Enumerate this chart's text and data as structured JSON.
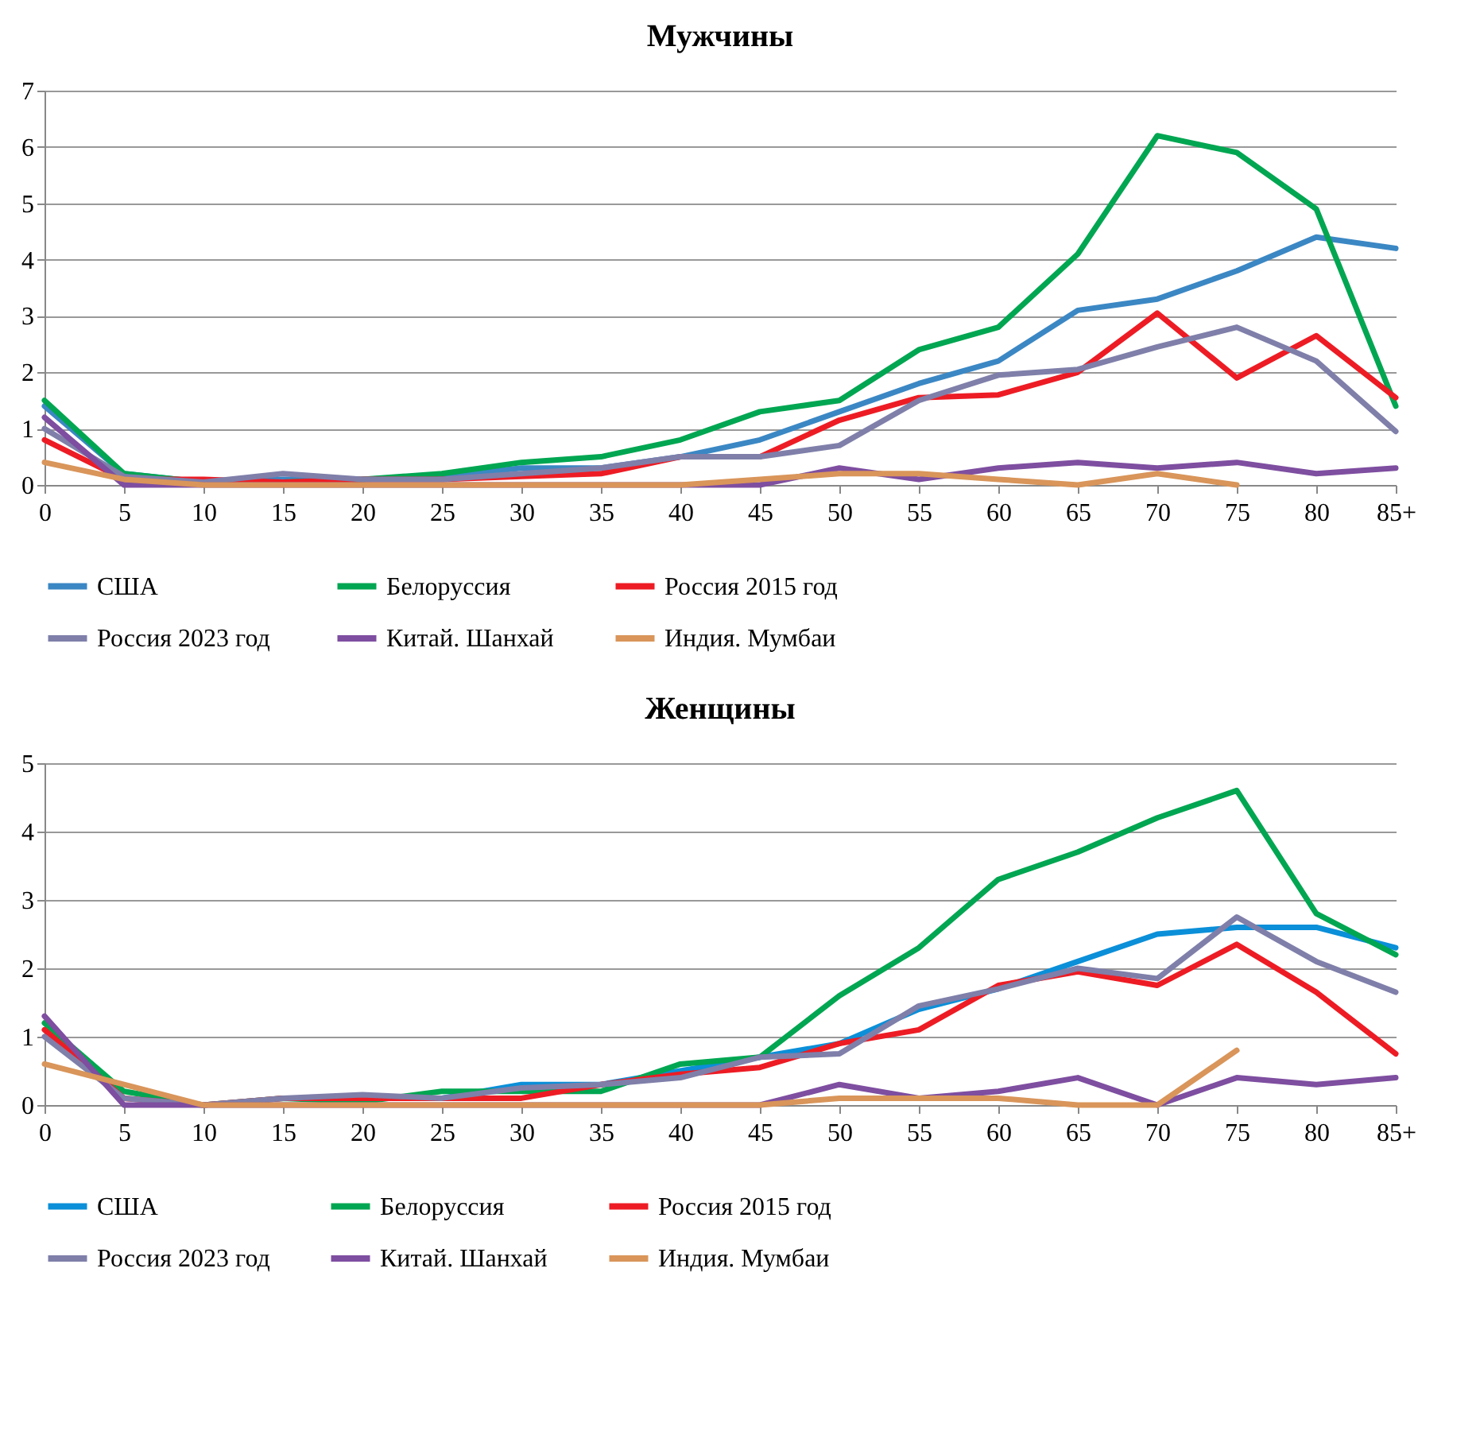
{
  "chart_data": [
    {
      "type": "line",
      "title": "Мужчины",
      "categories": [
        "0",
        "5",
        "10",
        "15",
        "20",
        "25",
        "30",
        "35",
        "40",
        "45",
        "50",
        "55",
        "60",
        "65",
        "70",
        "75",
        "80",
        "85+"
      ],
      "ylim": [
        0,
        7
      ],
      "yticks": [
        0,
        1,
        2,
        3,
        4,
        5,
        6,
        7
      ],
      "grid": "y",
      "legend": "bottom",
      "series": [
        {
          "name": "США",
          "color": "#3b87c4",
          "values": [
            1.4,
            0.2,
            0.05,
            0.1,
            0.1,
            0.15,
            0.3,
            0.3,
            0.5,
            0.8,
            1.3,
            1.8,
            2.2,
            3.1,
            3.3,
            3.8,
            4.4,
            4.2
          ]
        },
        {
          "name": "Белоруссия",
          "color": "#00a651",
          "values": [
            1.5,
            0.2,
            0.05,
            0.05,
            0.1,
            0.2,
            0.4,
            0.5,
            0.8,
            1.3,
            1.5,
            2.4,
            2.8,
            4.1,
            6.2,
            5.9,
            4.9,
            1.4
          ]
        },
        {
          "name": "Россия 2015 год",
          "color": "#ed1c24",
          "values": [
            0.8,
            0.1,
            0.1,
            0.05,
            0.1,
            0.1,
            0.15,
            0.2,
            0.5,
            0.5,
            1.15,
            1.55,
            1.6,
            2.0,
            3.05,
            1.9,
            2.65,
            1.55
          ]
        },
        {
          "name": "Россия 2023  год",
          "color": "#7f7faa",
          "values": [
            1.0,
            0.15,
            0.05,
            0.2,
            0.1,
            0.1,
            0.2,
            0.3,
            0.5,
            0.5,
            0.7,
            1.5,
            1.95,
            2.05,
            2.45,
            2.8,
            2.2,
            0.95
          ]
        },
        {
          "name": "Китай. Шанхай",
          "color": "#7e4ea0",
          "values": [
            1.2,
            0,
            0,
            0,
            0,
            0,
            0,
            0,
            0,
            0,
            0.3,
            0.1,
            0.3,
            0.4,
            0.3,
            0.4,
            0.2,
            0.3
          ]
        },
        {
          "name": "Индия. Мумбаи",
          "color": "#d9955a",
          "values": [
            0.4,
            0.1,
            0,
            0,
            0,
            0,
            0,
            0,
            0,
            0.1,
            0.2,
            0.2,
            0.1,
            0,
            0.2,
            0,
            null,
            null
          ]
        }
      ]
    },
    {
      "type": "line",
      "title": "Женщины",
      "categories": [
        "0",
        "5",
        "10",
        "15",
        "20",
        "25",
        "30",
        "35",
        "40",
        "45",
        "50",
        "55",
        "60",
        "65",
        "70",
        "75",
        "80",
        "85+"
      ],
      "ylim": [
        0,
        5
      ],
      "yticks": [
        0,
        1,
        2,
        3,
        4,
        5
      ],
      "grid": "y",
      "legend": "bottom",
      "series": [
        {
          "name": "США",
          "color": "#0b8fd8",
          "values": [
            null,
            null,
            null,
            null,
            0.1,
            0.1,
            0.3,
            0.3,
            0.5,
            0.7,
            0.9,
            1.4,
            1.7,
            2.1,
            2.5,
            2.6,
            2.6,
            2.3
          ]
        },
        {
          "name": "Белоруссия",
          "color": "#00a651",
          "values": [
            1.2,
            0.2,
            0,
            0.1,
            0.05,
            0.2,
            0.2,
            0.2,
            0.6,
            0.7,
            1.6,
            2.3,
            3.3,
            3.7,
            4.2,
            4.6,
            2.8,
            2.2
          ]
        },
        {
          "name": "Россия 2015 год",
          "color": "#ed1c24",
          "values": [
            1.1,
            0.1,
            0,
            0.1,
            0.1,
            0.1,
            0.1,
            0.3,
            0.45,
            0.55,
            0.9,
            1.1,
            1.75,
            1.95,
            1.75,
            2.35,
            1.65,
            0.75
          ]
        },
        {
          "name": "Россия 2023 год",
          "color": "#7f7faa",
          "values": [
            1.0,
            0.1,
            0,
            0.1,
            0.15,
            0.1,
            0.25,
            0.3,
            0.4,
            0.7,
            0.75,
            1.45,
            1.7,
            2.0,
            1.85,
            2.75,
            2.1,
            1.65
          ]
        },
        {
          "name": "Китай. Шанхай",
          "color": "#7e4ea0",
          "values": [
            1.3,
            0,
            0,
            0,
            0,
            0,
            0,
            0,
            0,
            0,
            0.3,
            0.1,
            0.2,
            0.4,
            0,
            0.4,
            0.3,
            0.4
          ]
        },
        {
          "name": "Индия. Мумбаи",
          "color": "#d9955a",
          "values": [
            0.6,
            0.3,
            0,
            0,
            0,
            0,
            0,
            0,
            0,
            0,
            0.1,
            0.1,
            0.1,
            0,
            0,
            0.8,
            null,
            null
          ]
        }
      ]
    }
  ]
}
